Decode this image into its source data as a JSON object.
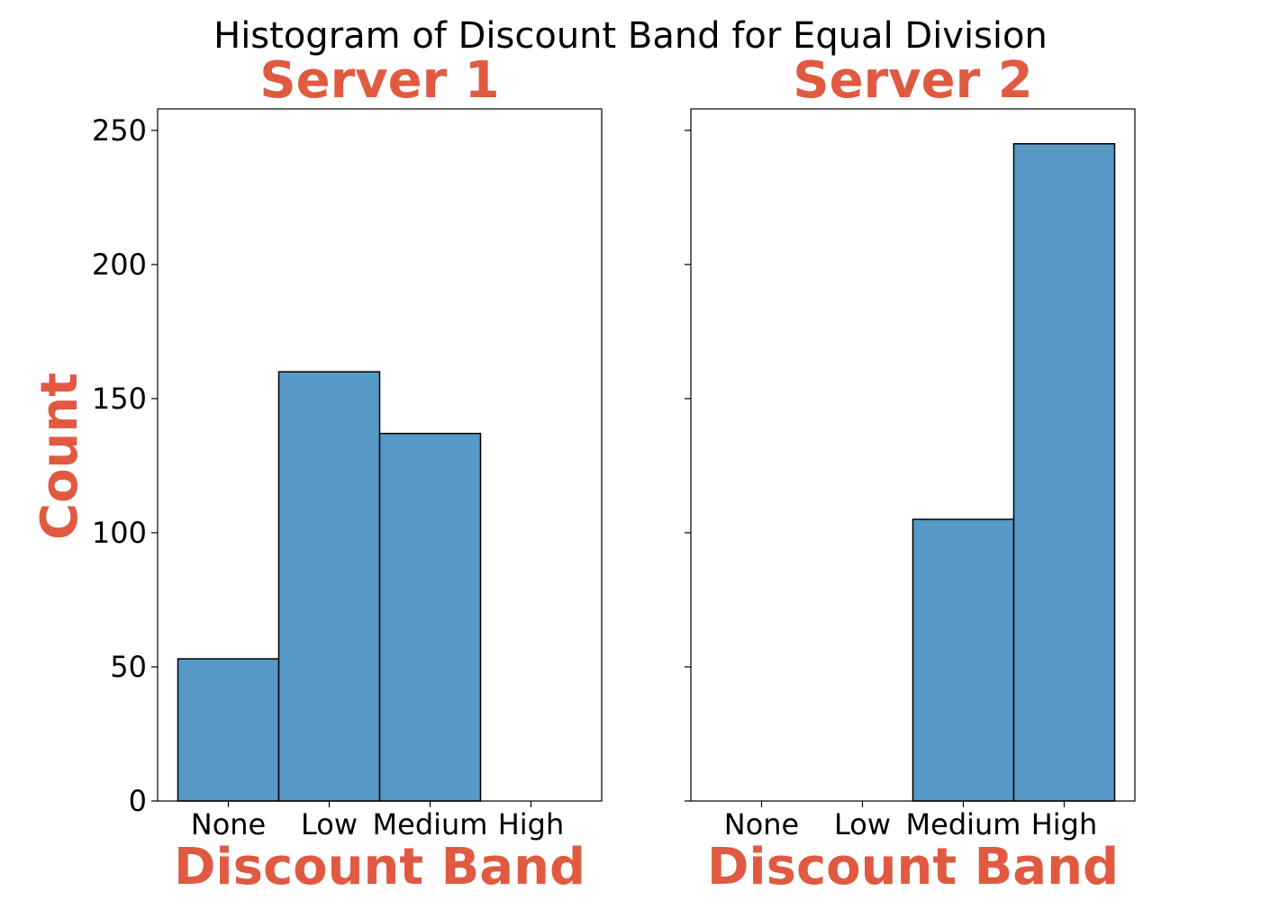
{
  "chart_data": {
    "type": "bar",
    "title": "Histogram of Discount Band for Equal Division",
    "label_color": "#E05A41",
    "bar_color": "#5699C6",
    "categories": [
      "None",
      "Low",
      "Medium",
      "High"
    ],
    "ylim": [
      0,
      258
    ],
    "yticks": [
      0,
      50,
      100,
      150,
      200,
      250
    ],
    "ylabel": "Count",
    "panels": [
      {
        "title": "Server 1",
        "xlabel": "Discount Band",
        "values": [
          53,
          160,
          137,
          0
        ]
      },
      {
        "title": "Server 2",
        "xlabel": "Discount Band",
        "values": [
          0,
          0,
          105,
          245
        ]
      }
    ]
  }
}
